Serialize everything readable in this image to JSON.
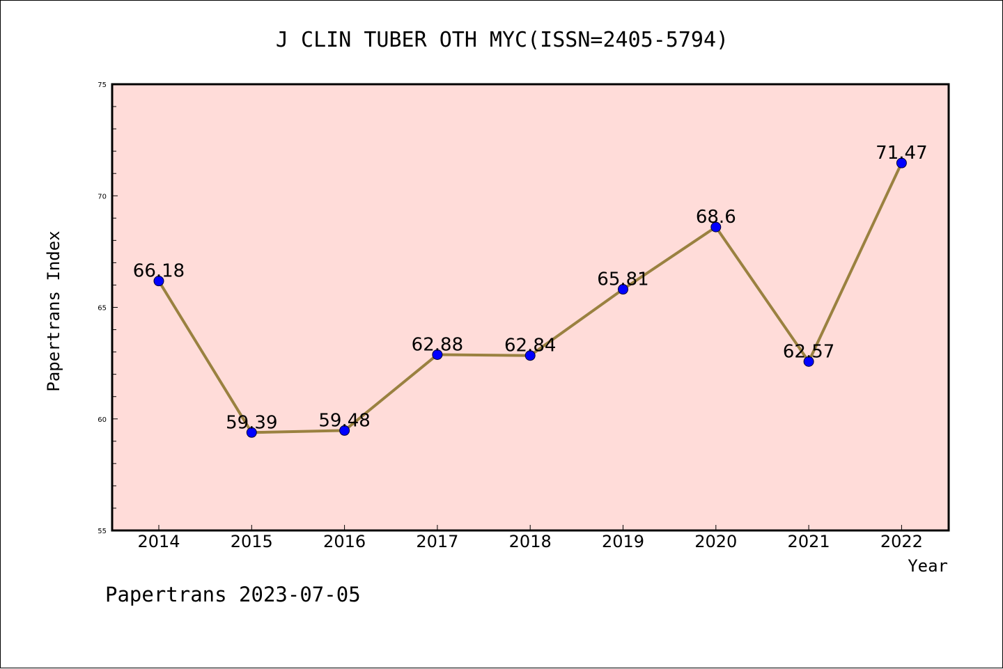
{
  "chart_data": {
    "type": "line",
    "title": "J CLIN TUBER OTH MYC(ISSN=2405-5794)",
    "xlabel": "Year",
    "ylabel": "Papertrans Index",
    "categories": [
      "2014",
      "2015",
      "2016",
      "2017",
      "2018",
      "2019",
      "2020",
      "2021",
      "2022"
    ],
    "series": [
      {
        "values": [
          66.18,
          59.39,
          59.48,
          62.88,
          62.84,
          65.81,
          68.6,
          62.57,
          71.47
        ],
        "labels": [
          "66.18",
          "59.39",
          "59.48",
          "62.88",
          "62.84",
          "65.81",
          "68.6",
          "62.57",
          "71.47"
        ]
      }
    ],
    "ylim": [
      55,
      75
    ],
    "yticks": [
      "55",
      "60",
      "65",
      "70",
      "75"
    ],
    "grid": false,
    "colors": {
      "plot_background": "#ffdcd9",
      "line": "#9a8140",
      "marker": "#0000ff"
    }
  },
  "footer": "Papertrans 2023-07-05"
}
